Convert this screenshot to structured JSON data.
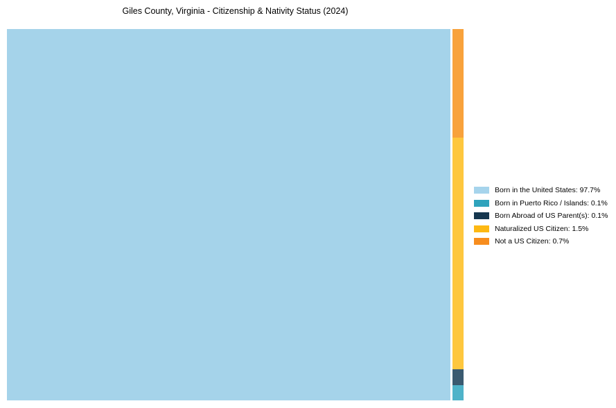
{
  "title": "Giles County, Virginia - Citizenship & Nativity Status (2024)",
  "chart_data": {
    "type": "treemap",
    "title": "Giles County, Virginia - Citizenship & Nativity Status (2024)",
    "categories": [
      "Born in the United States",
      "Born in Puerto Rico / Islands",
      "Born Abroad of US Parent(s)",
      "Naturalized US Citizen",
      "Not a US Citizen"
    ],
    "values": [
      97.7,
      0.1,
      0.1,
      1.5,
      0.7
    ],
    "units": "%",
    "fills": [
      "#a5d3ea",
      "#4fb3c9",
      "#3a5a70",
      "#fec73e",
      "#f8a23c"
    ],
    "layout": {
      "main_index": 0,
      "strip_order_top_to_bottom": [
        4,
        3,
        2,
        1
      ],
      "legend_position": "right",
      "grid": false
    }
  },
  "legend": {
    "items": [
      {
        "label": "Born in the United States: 97.7%",
        "color": "#a6d4ec"
      },
      {
        "label": "Born in Puerto Rico / Islands: 0.1%",
        "color": "#2fa3bc"
      },
      {
        "label": "Born Abroad of US Parent(s): 0.1%",
        "color": "#16374f"
      },
      {
        "label": "Naturalized US Citizen: 1.5%",
        "color": "#fdb813"
      },
      {
        "label": "Not a US Citizen: 0.7%",
        "color": "#f78d1e"
      }
    ]
  },
  "colors": {
    "background": "#ffffff",
    "title_text": "#000000",
    "legend_text": "#000000"
  }
}
